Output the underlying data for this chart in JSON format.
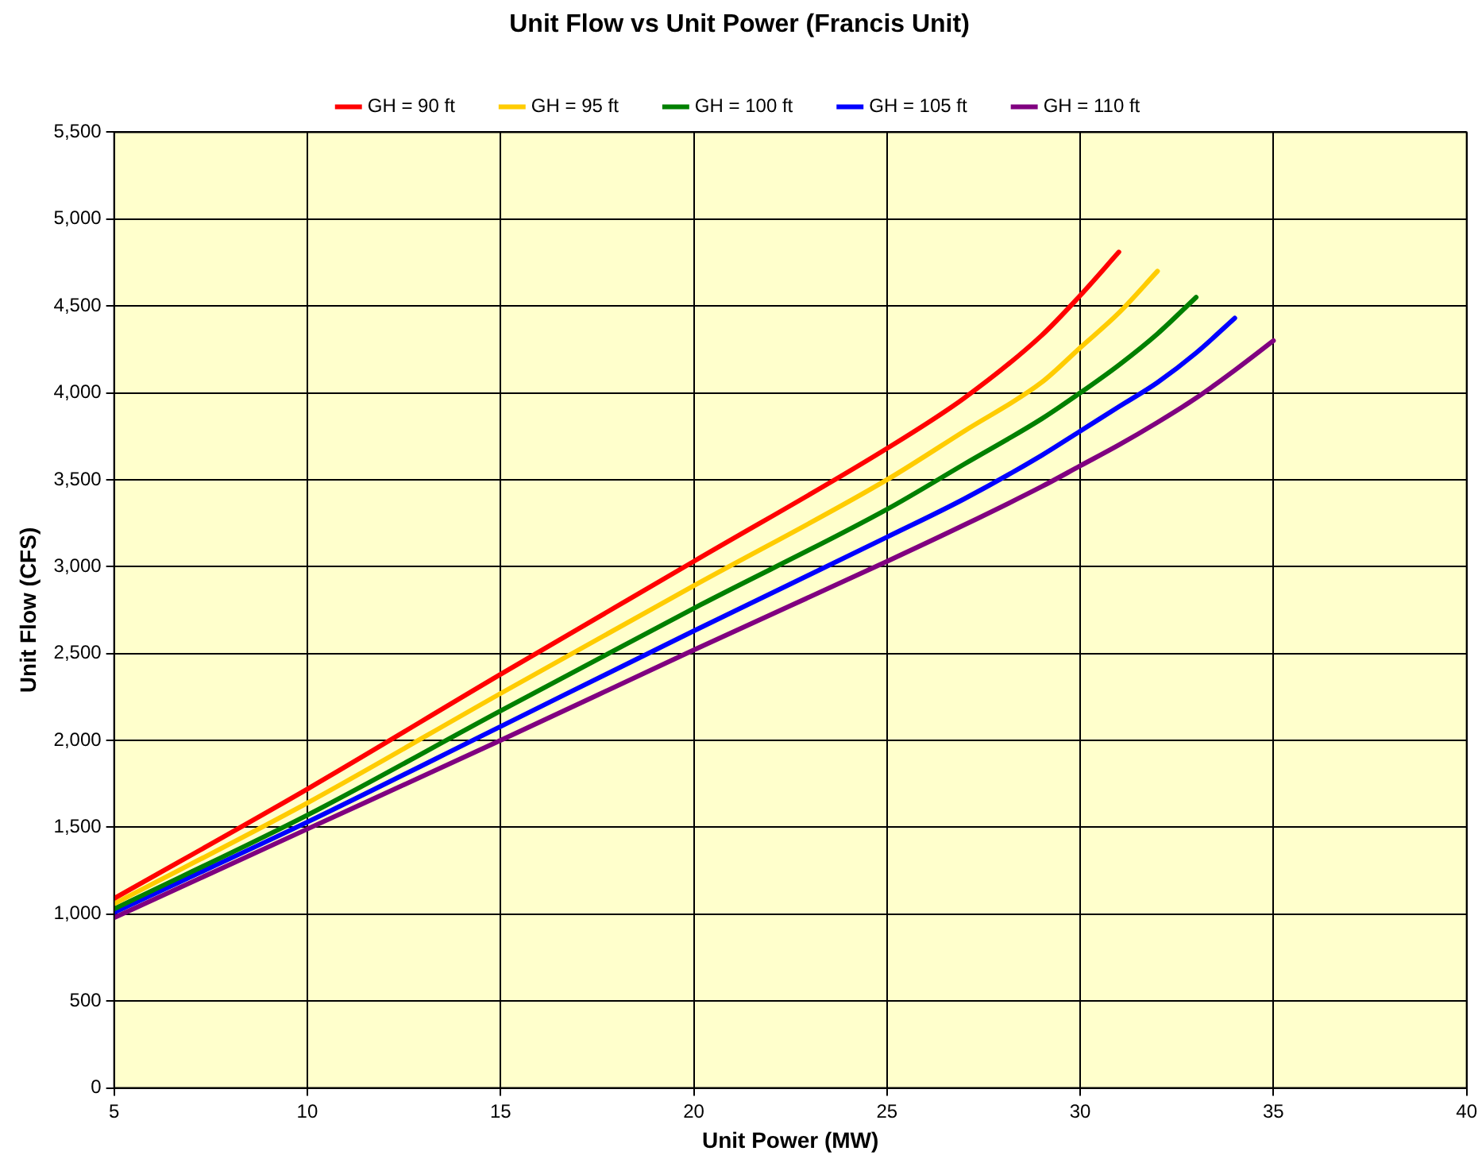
{
  "chart_data": {
    "type": "line",
    "title": "Unit Flow vs Unit Power (Francis Unit)",
    "xlabel": "Unit Power (MW)",
    "ylabel": "Unit Flow (CFS)",
    "xlim": [
      5,
      40
    ],
    "xticks": [
      5,
      10,
      15,
      20,
      25,
      30,
      35,
      40
    ],
    "ylim": [
      0,
      5500
    ],
    "yticks": [
      0,
      500,
      {
        "value": 1000,
        "label": "1,000"
      },
      {
        "value": 1500,
        "label": "1,500"
      },
      {
        "value": 2000,
        "label": "2,000"
      },
      {
        "value": 2500,
        "label": "2,500"
      },
      {
        "value": 3000,
        "label": "3,000"
      },
      {
        "value": 3500,
        "label": "3,500"
      },
      {
        "value": 4000,
        "label": "4,000"
      },
      {
        "value": 4500,
        "label": "4,500"
      },
      {
        "value": 5000,
        "label": "5,000"
      },
      {
        "value": 5500,
        "label": "5,500"
      }
    ],
    "grid": true,
    "legend": "top",
    "marker": "none",
    "line_style": "solid",
    "series": [
      {
        "name": "GH = 90 ft",
        "color": "#ff0000",
        "x": [
          5,
          10,
          15,
          20,
          25,
          27,
          29,
          30,
          31
        ],
        "values": [
          1090,
          1720,
          2380,
          3030,
          3680,
          3970,
          4330,
          4560,
          4810
        ]
      },
      {
        "name": "GH = 95 ft",
        "color": "#ffcc00",
        "x": [
          5,
          10,
          15,
          20,
          25,
          27,
          29,
          30,
          31,
          32
        ],
        "values": [
          1060,
          1640,
          2270,
          2890,
          3500,
          3780,
          4060,
          4260,
          4460,
          4700
        ]
      },
      {
        "name": "GH = 100 ft",
        "color": "#008000",
        "x": [
          5,
          10,
          15,
          20,
          25,
          27,
          29,
          30,
          31,
          32,
          33
        ],
        "values": [
          1030,
          1570,
          2170,
          2760,
          3330,
          3590,
          3850,
          4000,
          4160,
          4340,
          4550
        ]
      },
      {
        "name": "GH = 105 ft",
        "color": "#0000ff",
        "x": [
          5,
          10,
          15,
          20,
          25,
          27,
          29,
          30,
          31,
          32,
          33,
          34
        ],
        "values": [
          1010,
          1530,
          2080,
          2630,
          3170,
          3390,
          3640,
          3780,
          3920,
          4060,
          4230,
          4430
        ]
      },
      {
        "name": "GH = 110 ft",
        "color": "#800080",
        "x": [
          5,
          10,
          15,
          20,
          25,
          27,
          29,
          30,
          31,
          32,
          33,
          34,
          35
        ],
        "values": [
          980,
          1490,
          2000,
          2520,
          3030,
          3240,
          3460,
          3580,
          3700,
          3830,
          3970,
          4130,
          4300
        ]
      }
    ]
  }
}
